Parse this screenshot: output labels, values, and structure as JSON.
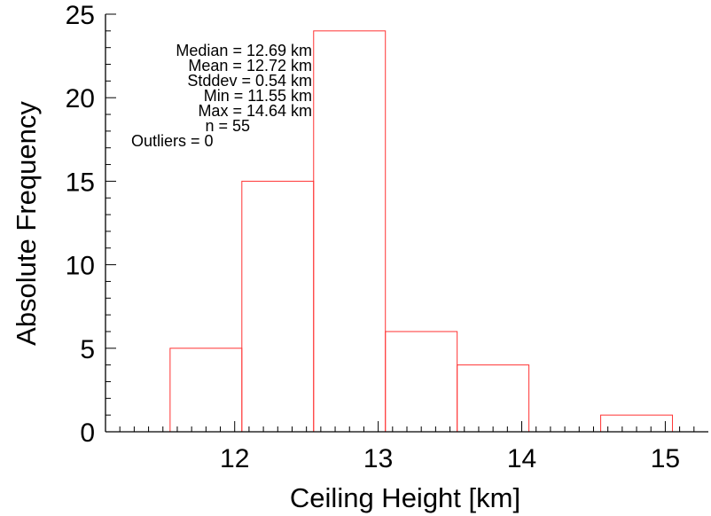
{
  "chart_data": {
    "type": "bar",
    "subtype": "histogram",
    "bins": [
      {
        "x0": 11.55,
        "x1": 12.05,
        "count": 5
      },
      {
        "x0": 12.05,
        "x1": 12.55,
        "count": 15
      },
      {
        "x0": 12.55,
        "x1": 13.05,
        "count": 24
      },
      {
        "x0": 13.05,
        "x1": 13.55,
        "count": 6
      },
      {
        "x0": 13.55,
        "x1": 14.05,
        "count": 4
      },
      {
        "x0": 14.05,
        "x1": 14.55,
        "count": 0
      },
      {
        "x0": 14.55,
        "x1": 15.05,
        "count": 1
      }
    ],
    "xlabel": "Ceiling Height [km]",
    "ylabel": "Absolute Frequency",
    "xlim": [
      11.1,
      15.3
    ],
    "ylim": [
      0,
      25
    ],
    "xticks": [
      12,
      13,
      14,
      15
    ],
    "yticks": [
      0,
      5,
      10,
      15,
      20,
      25
    ],
    "grid": false,
    "bar_color": "#ff3333",
    "stats": [
      "Median = 12.69 km",
      "Mean = 12.72 km",
      "Stddev = 0.54 km",
      "Min = 11.55 km",
      "Max = 14.64 km",
      "n = 55",
      "Outliers = 0"
    ]
  }
}
